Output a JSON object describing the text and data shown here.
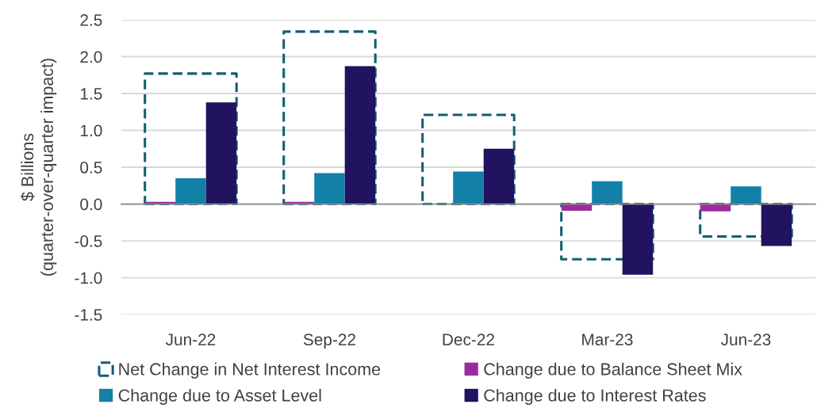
{
  "chart_data": {
    "type": "bar",
    "ylabel": "$ Billions\n(quarter-over-quarter impact)",
    "categories": [
      "Jun-22",
      "Sep-22",
      "Dec-22",
      "Mar-23",
      "Jun-23"
    ],
    "series": [
      {
        "name": "Net Change in Net Interest Income",
        "color": "#135e73",
        "line_style": "dashed",
        "values": [
          1.77,
          2.34,
          1.21,
          -0.75,
          -0.44
        ]
      },
      {
        "name": "Change due to Balance Sheet Mix",
        "color": "#9b2c9f",
        "values": [
          0.03,
          0.03,
          0,
          -0.09,
          -0.1
        ]
      },
      {
        "name": "Change due to Asset Level",
        "color": "#1380a8",
        "values": [
          0.35,
          0.42,
          0.44,
          0.31,
          0.24
        ]
      },
      {
        "name": "Change due to Interest Rates",
        "color": "#21135f",
        "values": [
          1.38,
          1.87,
          0.75,
          -0.96,
          -0.57
        ]
      }
    ],
    "ylim": [
      -1.5,
      2.5
    ],
    "yticks": [
      -1.5,
      {
        "value": -1,
        "label": "-1.0"
      },
      -0.5,
      {
        "value": 0,
        "label": "0.0"
      },
      0.5,
      {
        "value": 1,
        "label": "1.0"
      },
      1.5,
      {
        "value": 2,
        "label": "2.0"
      },
      2.5
    ],
    "grid": "y",
    "legend": "bottom"
  }
}
